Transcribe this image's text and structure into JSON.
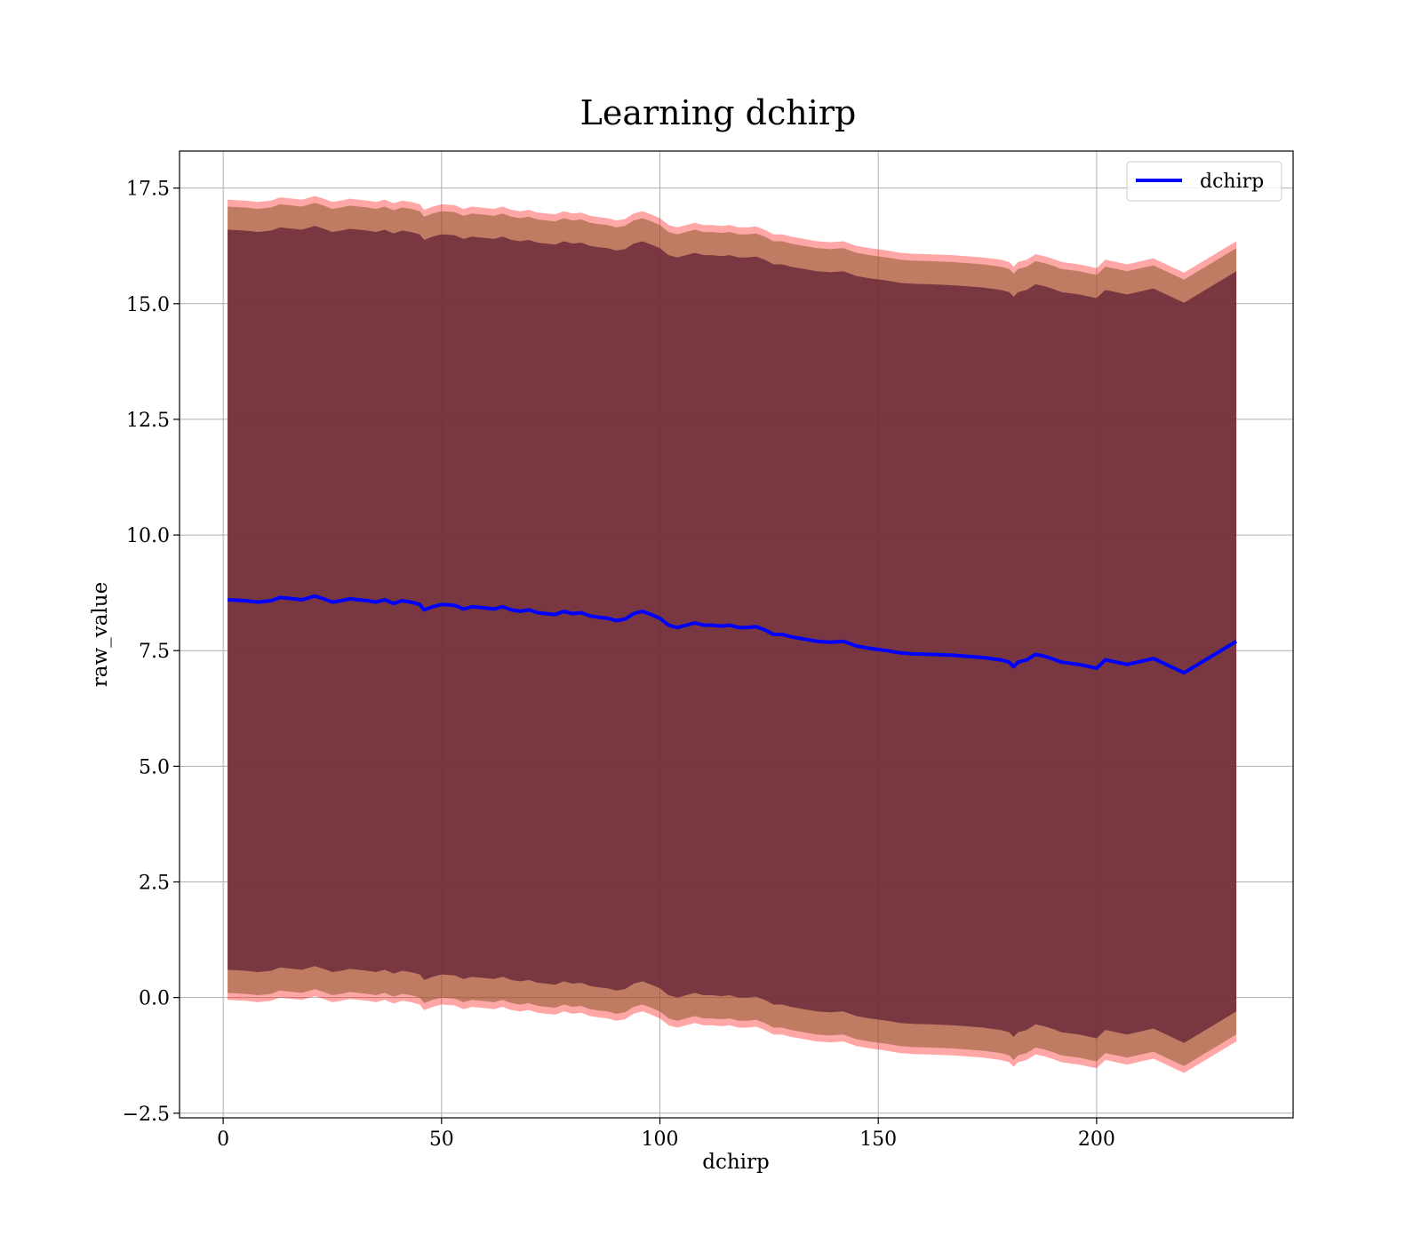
{
  "chart_data": {
    "type": "area",
    "title": "Learning dchirp",
    "xlabel": "dchirp",
    "ylabel": "raw_value",
    "xlim": [
      -10,
      245
    ],
    "ylim": [
      -2.6,
      18.3
    ],
    "xticks": [
      0,
      50,
      100,
      150,
      200
    ],
    "xtick_labels": [
      "0",
      "50",
      "100",
      "150",
      "200"
    ],
    "yticks": [
      -2.5,
      0.0,
      2.5,
      5.0,
      7.5,
      10.0,
      12.5,
      15.0,
      17.5
    ],
    "ytick_labels": [
      "−2.5",
      "0.0",
      "2.5",
      "5.0",
      "7.5",
      "10.0",
      "12.5",
      "15.0",
      "17.5"
    ],
    "grid": true,
    "legend_position": "top-right",
    "colors": {
      "line": "#0000ff",
      "band_outer": "#ff0000",
      "band_middle": "#8b5a2b",
      "band_inner": "#6b2b3b"
    },
    "band_offsets": {
      "inner": 8.0,
      "middle": 8.5,
      "outer": 8.65
    },
    "series": [
      {
        "name": "dchirp",
        "x": [
          1,
          5,
          8,
          11,
          13,
          16,
          18,
          21,
          23,
          25,
          27,
          29,
          31,
          33,
          35,
          37,
          39,
          41,
          43,
          45,
          46,
          48,
          50,
          53,
          55,
          57,
          60,
          62,
          64,
          66,
          68,
          70,
          72,
          74,
          76,
          78,
          80,
          82,
          84,
          86,
          88,
          90,
          92,
          94,
          96,
          98,
          100,
          102,
          104,
          106,
          108,
          110,
          112,
          114,
          116,
          118,
          120,
          122,
          124,
          126,
          128,
          130,
          133,
          136,
          139,
          142,
          145,
          148,
          152,
          155,
          158,
          162,
          167,
          170,
          174,
          178,
          180,
          181,
          182,
          184,
          186,
          188,
          190,
          192,
          196,
          200,
          202,
          207,
          213,
          220,
          232
        ],
        "y": [
          8.6,
          8.58,
          8.55,
          8.58,
          8.65,
          8.62,
          8.6,
          8.68,
          8.62,
          8.55,
          8.58,
          8.62,
          8.6,
          8.58,
          8.55,
          8.6,
          8.52,
          8.58,
          8.55,
          8.5,
          8.38,
          8.45,
          8.5,
          8.48,
          8.4,
          8.45,
          8.42,
          8.4,
          8.45,
          8.38,
          8.35,
          8.38,
          8.32,
          8.3,
          8.28,
          8.35,
          8.3,
          8.32,
          8.25,
          8.22,
          8.2,
          8.15,
          8.18,
          8.3,
          8.35,
          8.28,
          8.2,
          8.05,
          8.0,
          8.05,
          8.1,
          8.05,
          8.05,
          8.03,
          8.05,
          8.0,
          8.0,
          8.02,
          7.95,
          7.85,
          7.85,
          7.8,
          7.75,
          7.7,
          7.68,
          7.7,
          7.6,
          7.55,
          7.5,
          7.45,
          7.43,
          7.42,
          7.4,
          7.38,
          7.35,
          7.3,
          7.25,
          7.15,
          7.25,
          7.3,
          7.42,
          7.38,
          7.32,
          7.25,
          7.2,
          7.12,
          7.3,
          7.2,
          7.33,
          7.02,
          7.7
        ]
      }
    ]
  }
}
